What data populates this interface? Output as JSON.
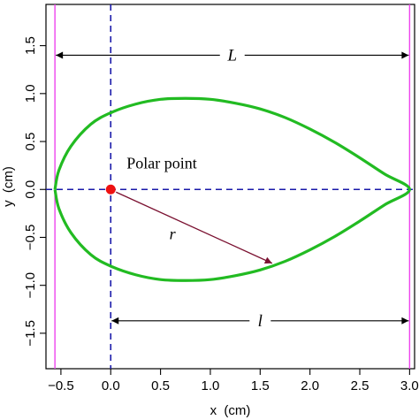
{
  "chart_data": {
    "type": "line",
    "title": "",
    "xlabel": "x  (cm)",
    "ylabel": "y  (cm)",
    "xlim": [
      -0.65,
      3.05
    ],
    "ylim": [
      -1.87,
      1.93
    ],
    "x_ticks": [
      -0.5,
      0.0,
      0.5,
      1.0,
      1.5,
      2.0,
      2.5,
      3.0
    ],
    "x_tick_labels": [
      "−0.5",
      "0.0",
      "0.5",
      "1.0",
      "1.5",
      "2.0",
      "2.5",
      "3.0"
    ],
    "y_ticks": [
      -1.5,
      -1.0,
      -0.5,
      0.0,
      0.5,
      1.0,
      1.5
    ],
    "y_tick_labels": [
      "−1.5",
      "−1.0",
      "−0.5",
      "0.0",
      "0.5",
      "1.0",
      "1.5"
    ],
    "grid": false,
    "curve": {
      "color": "#22bb22",
      "x": [
        -0.56,
        -0.52,
        -0.4,
        -0.2,
        0.0,
        0.25,
        0.5,
        0.75,
        1.0,
        1.25,
        1.5,
        1.75,
        2.0,
        2.25,
        2.5,
        2.75,
        3.0,
        2.75,
        2.5,
        2.25,
        2.0,
        1.75,
        1.5,
        1.25,
        1.0,
        0.75,
        0.5,
        0.25,
        0.0,
        -0.2,
        -0.4,
        -0.52,
        -0.56
      ],
      "y": [
        0.0,
        0.2,
        0.45,
        0.68,
        0.8,
        0.89,
        0.94,
        0.95,
        0.94,
        0.9,
        0.84,
        0.75,
        0.63,
        0.49,
        0.33,
        0.16,
        0.0,
        -0.16,
        -0.33,
        -0.49,
        -0.63,
        -0.75,
        -0.84,
        -0.9,
        -0.94,
        -0.95,
        -0.94,
        -0.89,
        -0.8,
        -0.68,
        -0.45,
        -0.2,
        0.0
      ]
    },
    "vertical_lines": [
      {
        "x": -0.56,
        "color": "#ee44ee",
        "style": "solid"
      },
      {
        "x": 3.0,
        "color": "#ee44ee",
        "style": "solid"
      },
      {
        "x": 0.0,
        "color": "#1a1aaa",
        "style": "dashed"
      }
    ],
    "horizontal_lines": [
      {
        "y": 0.0,
        "color": "#1a1aaa",
        "style": "dashed"
      }
    ],
    "polar_point": {
      "x": 0.0,
      "y": 0.0,
      "color": "#ee1111",
      "label": "Polar point"
    },
    "r_vector": {
      "from": [
        0.0,
        0.0
      ],
      "to": [
        1.62,
        -0.77
      ],
      "color": "#7a1030",
      "label": "r"
    },
    "dimension_L": {
      "from": -0.56,
      "to": 3.0,
      "y": 1.4,
      "label": "L"
    },
    "dimension_l": {
      "from": 0.0,
      "to": 3.0,
      "y": -1.37,
      "label": "l"
    },
    "colors": {
      "r_label": "#dd2222",
      "axis": "#000000"
    }
  }
}
